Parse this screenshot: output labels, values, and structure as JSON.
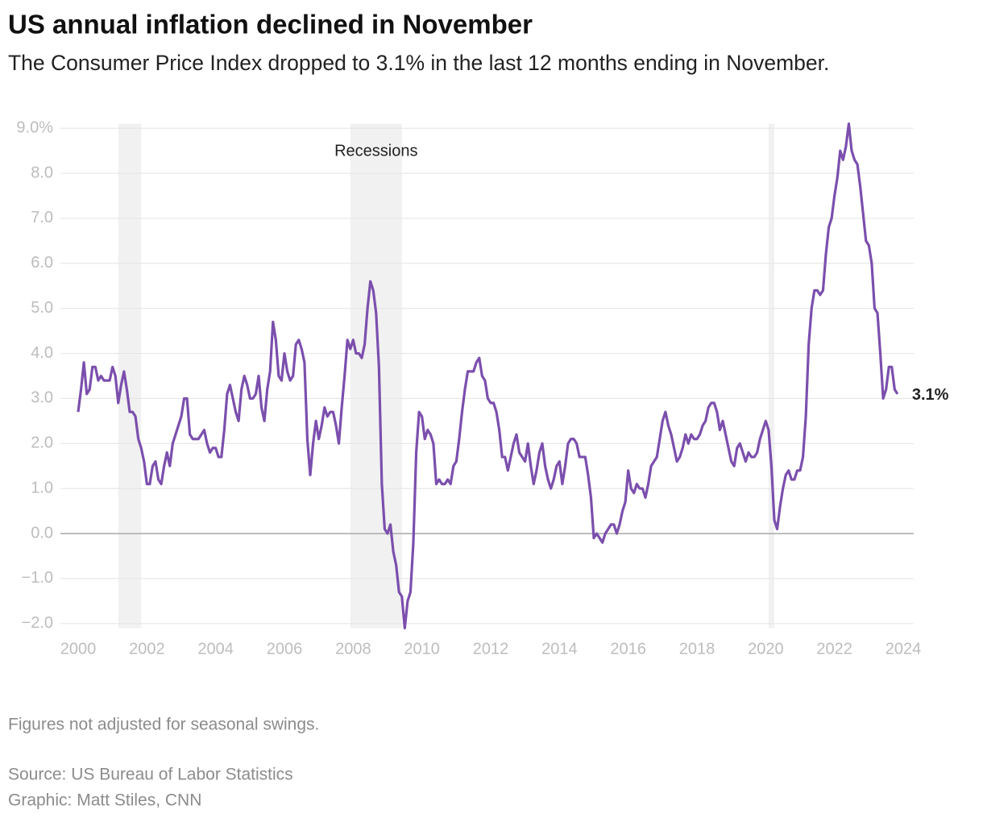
{
  "chart_data": {
    "type": "line",
    "title": "US annual inflation declined in November",
    "subtitle": "The Consumer Price Index dropped to 3.1% in the last 12 months ending in November.",
    "note": "Figures not adjusted for seasonal swings.",
    "source": "Source: US Bureau of Labor Statistics",
    "credit": "Graphic: Matt Stiles, CNN",
    "recession_label": "Recessions",
    "recessions": [
      {
        "start": "2001-03",
        "end": "2001-11"
      },
      {
        "start": "2007-12",
        "end": "2009-06"
      },
      {
        "start": "2020-02",
        "end": "2020-04"
      }
    ],
    "annotations": [
      {
        "text": "3.1%",
        "x": "2023-11",
        "y": 3.1
      }
    ],
    "xlim": [
      2000,
      2024
    ],
    "xticks": [
      2000,
      2002,
      2004,
      2006,
      2008,
      2010,
      2012,
      2014,
      2016,
      2018,
      2020,
      2022,
      2024
    ],
    "ylim": [
      -2.1,
      9.1
    ],
    "yticks": [
      {
        "value": 9,
        "label": "9.0%"
      },
      {
        "value": 8,
        "label": "8.0"
      },
      {
        "value": 7,
        "label": "7.0"
      },
      {
        "value": 6,
        "label": "6.0"
      },
      {
        "value": 5,
        "label": "5.0"
      },
      {
        "value": 4,
        "label": "4.0"
      },
      {
        "value": 3,
        "label": "3.0"
      },
      {
        "value": 2,
        "label": "2.0"
      },
      {
        "value": 1,
        "label": "1.0"
      },
      {
        "value": 0,
        "label": "0.0"
      },
      {
        "value": -1,
        "label": "−1.0"
      },
      {
        "value": -2,
        "label": "−2.0"
      }
    ],
    "grid": true,
    "x": [
      "2000-01",
      "2000-02",
      "2000-03",
      "2000-04",
      "2000-05",
      "2000-06",
      "2000-07",
      "2000-08",
      "2000-09",
      "2000-10",
      "2000-11",
      "2000-12",
      "2001-01",
      "2001-02",
      "2001-03",
      "2001-04",
      "2001-05",
      "2001-06",
      "2001-07",
      "2001-08",
      "2001-09",
      "2001-10",
      "2001-11",
      "2001-12",
      "2002-01",
      "2002-02",
      "2002-03",
      "2002-04",
      "2002-05",
      "2002-06",
      "2002-07",
      "2002-08",
      "2002-09",
      "2002-10",
      "2002-11",
      "2002-12",
      "2003-01",
      "2003-02",
      "2003-03",
      "2003-04",
      "2003-05",
      "2003-06",
      "2003-07",
      "2003-08",
      "2003-09",
      "2003-10",
      "2003-11",
      "2003-12",
      "2004-01",
      "2004-02",
      "2004-03",
      "2004-04",
      "2004-05",
      "2004-06",
      "2004-07",
      "2004-08",
      "2004-09",
      "2004-10",
      "2004-11",
      "2004-12",
      "2005-01",
      "2005-02",
      "2005-03",
      "2005-04",
      "2005-05",
      "2005-06",
      "2005-07",
      "2005-08",
      "2005-09",
      "2005-10",
      "2005-11",
      "2005-12",
      "2006-01",
      "2006-02",
      "2006-03",
      "2006-04",
      "2006-05",
      "2006-06",
      "2006-07",
      "2006-08",
      "2006-09",
      "2006-10",
      "2006-11",
      "2006-12",
      "2007-01",
      "2007-02",
      "2007-03",
      "2007-04",
      "2007-05",
      "2007-06",
      "2007-07",
      "2007-08",
      "2007-09",
      "2007-10",
      "2007-11",
      "2007-12",
      "2008-01",
      "2008-02",
      "2008-03",
      "2008-04",
      "2008-05",
      "2008-06",
      "2008-07",
      "2008-08",
      "2008-09",
      "2008-10",
      "2008-11",
      "2008-12",
      "2009-01",
      "2009-02",
      "2009-03",
      "2009-04",
      "2009-05",
      "2009-06",
      "2009-07",
      "2009-08",
      "2009-09",
      "2009-10",
      "2009-11",
      "2009-12",
      "2010-01",
      "2010-02",
      "2010-03",
      "2010-04",
      "2010-05",
      "2010-06",
      "2010-07",
      "2010-08",
      "2010-09",
      "2010-10",
      "2010-11",
      "2010-12",
      "2011-01",
      "2011-02",
      "2011-03",
      "2011-04",
      "2011-05",
      "2011-06",
      "2011-07",
      "2011-08",
      "2011-09",
      "2011-10",
      "2011-11",
      "2011-12",
      "2012-01",
      "2012-02",
      "2012-03",
      "2012-04",
      "2012-05",
      "2012-06",
      "2012-07",
      "2012-08",
      "2012-09",
      "2012-10",
      "2012-11",
      "2012-12",
      "2013-01",
      "2013-02",
      "2013-03",
      "2013-04",
      "2013-05",
      "2013-06",
      "2013-07",
      "2013-08",
      "2013-09",
      "2013-10",
      "2013-11",
      "2013-12",
      "2014-01",
      "2014-02",
      "2014-03",
      "2014-04",
      "2014-05",
      "2014-06",
      "2014-07",
      "2014-08",
      "2014-09",
      "2014-10",
      "2014-11",
      "2014-12",
      "2015-01",
      "2015-02",
      "2015-03",
      "2015-04",
      "2015-05",
      "2015-06",
      "2015-07",
      "2015-08",
      "2015-09",
      "2015-10",
      "2015-11",
      "2015-12",
      "2016-01",
      "2016-02",
      "2016-03",
      "2016-04",
      "2016-05",
      "2016-06",
      "2016-07",
      "2016-08",
      "2016-09",
      "2016-10",
      "2016-11",
      "2016-12",
      "2017-01",
      "2017-02",
      "2017-03",
      "2017-04",
      "2017-05",
      "2017-06",
      "2017-07",
      "2017-08",
      "2017-09",
      "2017-10",
      "2017-11",
      "2017-12",
      "2018-01",
      "2018-02",
      "2018-03",
      "2018-04",
      "2018-05",
      "2018-06",
      "2018-07",
      "2018-08",
      "2018-09",
      "2018-10",
      "2018-11",
      "2018-12",
      "2019-01",
      "2019-02",
      "2019-03",
      "2019-04",
      "2019-05",
      "2019-06",
      "2019-07",
      "2019-08",
      "2019-09",
      "2019-10",
      "2019-11",
      "2019-12",
      "2020-01",
      "2020-02",
      "2020-03",
      "2020-04",
      "2020-05",
      "2020-06",
      "2020-07",
      "2020-08",
      "2020-09",
      "2020-10",
      "2020-11",
      "2020-12",
      "2021-01",
      "2021-02",
      "2021-03",
      "2021-04",
      "2021-05",
      "2021-06",
      "2021-07",
      "2021-08",
      "2021-09",
      "2021-10",
      "2021-11",
      "2021-12",
      "2022-01",
      "2022-02",
      "2022-03",
      "2022-04",
      "2022-05",
      "2022-06",
      "2022-07",
      "2022-08",
      "2022-09",
      "2022-10",
      "2022-11",
      "2022-12",
      "2023-01",
      "2023-02",
      "2023-03",
      "2023-04",
      "2023-05",
      "2023-06",
      "2023-07",
      "2023-08",
      "2023-09",
      "2023-10",
      "2023-11"
    ],
    "series": [
      {
        "name": "CPI",
        "color": "#7b4fad",
        "values": [
          2.7,
          3.2,
          3.8,
          3.1,
          3.2,
          3.7,
          3.7,
          3.4,
          3.5,
          3.4,
          3.4,
          3.4,
          3.7,
          3.5,
          2.9,
          3.3,
          3.6,
          3.2,
          2.7,
          2.7,
          2.6,
          2.1,
          1.9,
          1.6,
          1.1,
          1.1,
          1.5,
          1.6,
          1.2,
          1.1,
          1.5,
          1.8,
          1.5,
          2.0,
          2.2,
          2.4,
          2.6,
          3.0,
          3.0,
          2.2,
          2.1,
          2.1,
          2.1,
          2.2,
          2.3,
          2.0,
          1.8,
          1.9,
          1.9,
          1.7,
          1.7,
          2.3,
          3.1,
          3.3,
          3.0,
          2.7,
          2.5,
          3.2,
          3.5,
          3.3,
          3.0,
          3.0,
          3.1,
          3.5,
          2.8,
          2.5,
          3.2,
          3.6,
          4.7,
          4.3,
          3.5,
          3.4,
          4.0,
          3.6,
          3.4,
          3.5,
          4.2,
          4.3,
          4.1,
          3.8,
          2.1,
          1.3,
          2.0,
          2.5,
          2.1,
          2.4,
          2.8,
          2.6,
          2.7,
          2.7,
          2.4,
          2.0,
          2.8,
          3.5,
          4.3,
          4.1,
          4.3,
          4.0,
          4.0,
          3.9,
          4.2,
          5.0,
          5.6,
          5.4,
          4.9,
          3.7,
          1.1,
          0.1,
          0.0,
          0.2,
          -0.4,
          -0.7,
          -1.3,
          -1.4,
          -2.1,
          -1.5,
          -1.3,
          -0.2,
          1.8,
          2.7,
          2.6,
          2.1,
          2.3,
          2.2,
          2.0,
          1.1,
          1.2,
          1.1,
          1.1,
          1.2,
          1.1,
          1.5,
          1.6,
          2.1,
          2.7,
          3.2,
          3.6,
          3.6,
          3.6,
          3.8,
          3.9,
          3.5,
          3.4,
          3.0,
          2.9,
          2.9,
          2.7,
          2.3,
          1.7,
          1.7,
          1.4,
          1.7,
          2.0,
          2.2,
          1.8,
          1.7,
          1.6,
          2.0,
          1.5,
          1.1,
          1.4,
          1.8,
          2.0,
          1.5,
          1.2,
          1.0,
          1.2,
          1.5,
          1.6,
          1.1,
          1.5,
          2.0,
          2.1,
          2.1,
          2.0,
          1.7,
          1.7,
          1.7,
          1.3,
          0.8,
          -0.1,
          0.0,
          -0.1,
          -0.2,
          0.0,
          0.1,
          0.2,
          0.2,
          0.0,
          0.2,
          0.5,
          0.7,
          1.4,
          1.0,
          0.9,
          1.1,
          1.0,
          1.0,
          0.8,
          1.1,
          1.5,
          1.6,
          1.7,
          2.1,
          2.5,
          2.7,
          2.4,
          2.2,
          1.9,
          1.6,
          1.7,
          1.9,
          2.2,
          2.0,
          2.2,
          2.1,
          2.1,
          2.2,
          2.4,
          2.5,
          2.8,
          2.9,
          2.9,
          2.7,
          2.3,
          2.5,
          2.2,
          1.9,
          1.6,
          1.5,
          1.9,
          2.0,
          1.8,
          1.6,
          1.8,
          1.7,
          1.7,
          1.8,
          2.1,
          2.3,
          2.5,
          2.3,
          1.5,
          0.3,
          0.1,
          0.6,
          1.0,
          1.3,
          1.4,
          1.2,
          1.2,
          1.4,
          1.4,
          1.7,
          2.6,
          4.2,
          5.0,
          5.4,
          5.4,
          5.3,
          5.4,
          6.2,
          6.8,
          7.0,
          7.5,
          7.9,
          8.5,
          8.3,
          8.6,
          9.1,
          8.5,
          8.3,
          8.2,
          7.7,
          7.1,
          6.5,
          6.4,
          6.0,
          5.0,
          4.9,
          4.0,
          3.0,
          3.2,
          3.7,
          3.7,
          3.2,
          3.1
        ]
      }
    ]
  }
}
